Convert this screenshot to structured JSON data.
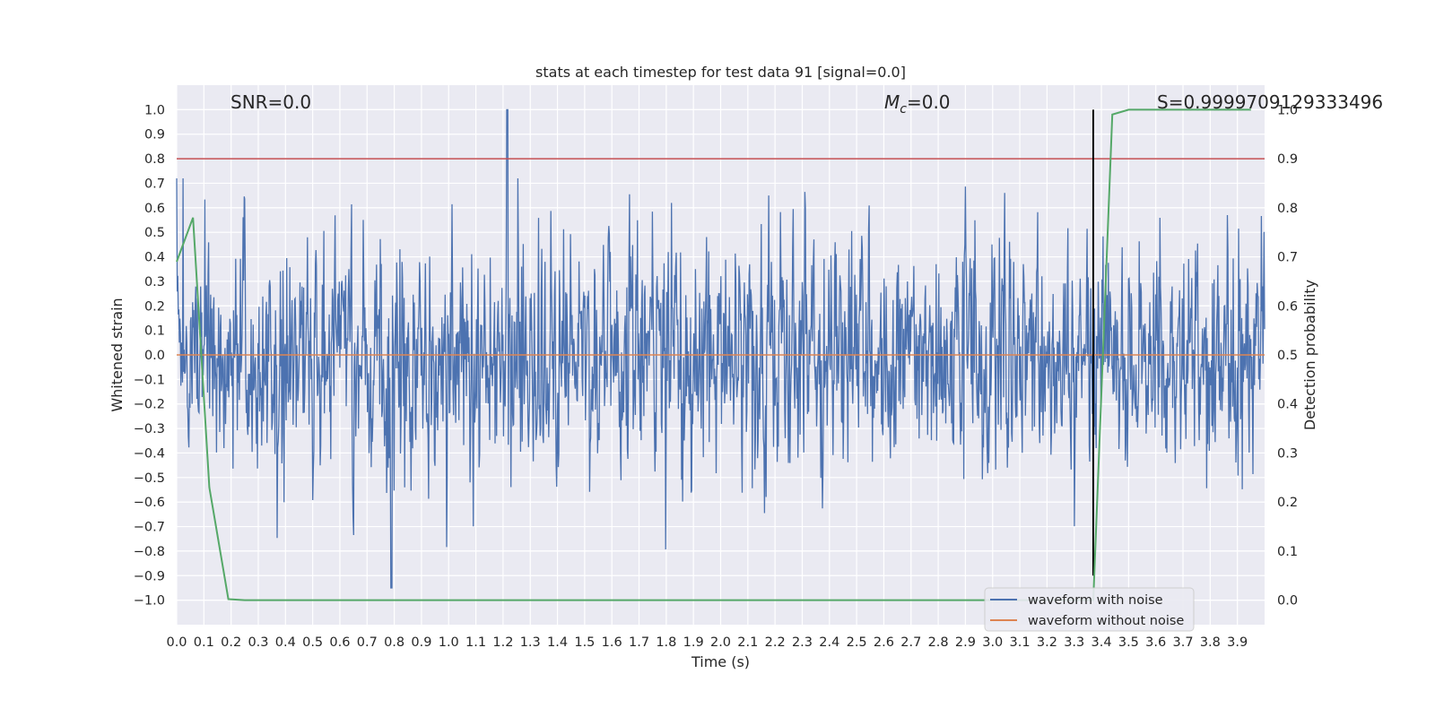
{
  "chart_data": {
    "type": "line",
    "title": "stats at each timestep for test data 91 [signal=0.0]",
    "xlabel": "Time (s)",
    "ylabel": "Whitened strain",
    "y2label": "Detection probability",
    "xlim": [
      0.0,
      4.0
    ],
    "ylim": [
      -1.1,
      1.1
    ],
    "y2lim": [
      -0.05,
      1.05
    ],
    "x_ticks": [
      "0.0",
      "0.1",
      "0.2",
      "0.3",
      "0.4",
      "0.5",
      "0.6",
      "0.7",
      "0.8",
      "0.9",
      "1.0",
      "1.1",
      "1.2",
      "1.3",
      "1.4",
      "1.5",
      "1.6",
      "1.7",
      "1.8",
      "1.9",
      "2.0",
      "2.1",
      "2.2",
      "2.3",
      "2.4",
      "2.5",
      "2.6",
      "2.7",
      "2.8",
      "2.9",
      "3.0",
      "3.1",
      "3.2",
      "3.3",
      "3.4",
      "3.5",
      "3.6",
      "3.7",
      "3.8",
      "3.9"
    ],
    "y_ticks": [
      "1.0",
      "0.9",
      "0.8",
      "0.7",
      "0.6",
      "0.5",
      "0.4",
      "0.3",
      "0.2",
      "0.1",
      "0.0",
      "−0.1",
      "−0.2",
      "−0.3",
      "−0.4",
      "−0.5",
      "−0.6",
      "−0.7",
      "−0.8",
      "−0.9",
      "−1.0"
    ],
    "y2_ticks": [
      "1.0",
      "0.9",
      "0.8",
      "0.7",
      "0.6",
      "0.5",
      "0.4",
      "0.3",
      "0.2",
      "0.1",
      "0.0"
    ],
    "annotations": {
      "snr": "SNR=0.0",
      "mc_symbol": "M",
      "mc_sub": "c",
      "mc_value": "=0.0",
      "s": "S=0.9999709129333496"
    },
    "hlines": [
      {
        "y": 0.8,
        "color": "#c44e52"
      }
    ],
    "vlines": [
      {
        "x": 3.37,
        "color": "#000000",
        "ymin": -0.9,
        "ymax": 1.0
      }
    ],
    "series": [
      {
        "name": "waveform with noise",
        "color": "#4c72b0",
        "kind": "noise",
        "samples": 2048,
        "std": 0.22,
        "peak": {
          "x": 1.215,
          "y": 1.0
        },
        "min": {
          "x": 0.79,
          "y": -0.95
        }
      },
      {
        "name": "waveform without noise",
        "color": "#dd8452",
        "kind": "flat",
        "value": 0.0
      },
      {
        "name": "detection probability",
        "color": "#55a868",
        "axis": "right",
        "x": [
          0.0,
          0.06,
          0.12,
          0.19,
          0.25,
          0.5,
          1.0,
          1.5,
          2.0,
          2.5,
          3.0,
          3.37,
          3.44,
          3.5,
          3.95
        ],
        "y": [
          0.69,
          0.78,
          0.23,
          0.002,
          0.0,
          0.0,
          0.0,
          0.0,
          0.0,
          0.0,
          0.0,
          0.0,
          0.99,
          1.0,
          1.0
        ]
      }
    ],
    "legend": {
      "placement": "lower-right",
      "entries": [
        "waveform with noise",
        "waveform without noise"
      ]
    },
    "grid": true,
    "background": "#eaeaf2"
  }
}
